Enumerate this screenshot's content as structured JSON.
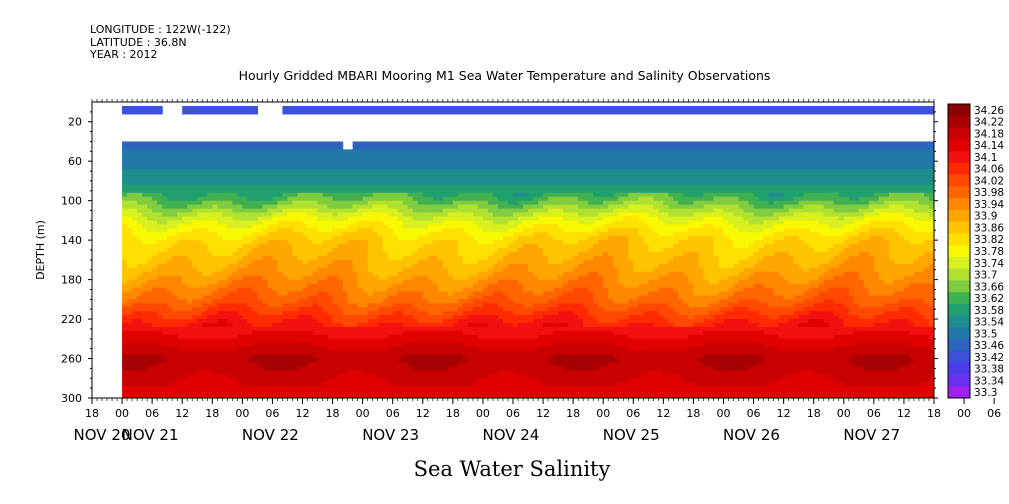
{
  "header": {
    "longitude": "LONGITUDE : 122W(-122)",
    "latitude": "LATITUDE : 36.8N",
    "year": "YEAR : 2012"
  },
  "chart_data": {
    "type": "heatmap",
    "title": "Hourly Gridded MBARI Mooring M1 Sea Water Temperature and Salinity Observations",
    "xlabel": "Sea Water Salinity",
    "ylabel": "DEPTH (m)",
    "ylim": [
      300,
      0
    ],
    "y_reversed": true,
    "y_ticks": [
      20,
      60,
      100,
      140,
      180,
      220,
      260,
      300
    ],
    "x_range_hours": [
      "NOV 20 18:00",
      "NOV 27 18:00"
    ],
    "x_hour_ticks": [
      "18",
      "00",
      "06",
      "12",
      "18",
      "00",
      "06",
      "12",
      "18",
      "00",
      "06",
      "12",
      "18",
      "00",
      "06",
      "12",
      "18",
      "00",
      "06",
      "12",
      "18",
      "00",
      "06",
      "12",
      "18",
      "00",
      "06",
      "12",
      "18",
      "00",
      "06",
      "12",
      "18"
    ],
    "x_day_labels": [
      "NOV 20",
      "NOV 21",
      "NOV 22",
      "NOV 23",
      "NOV 24",
      "NOV 25",
      "NOV 26",
      "NOV 27"
    ],
    "data_start": "NOV 21 00:00",
    "colorbar": {
      "levels": [
        34.26,
        34.22,
        34.18,
        34.14,
        34.1,
        34.06,
        34.02,
        33.98,
        33.94,
        33.9,
        33.86,
        33.82,
        33.78,
        33.74,
        33.7,
        33.66,
        33.62,
        33.58,
        33.54,
        33.5,
        33.46,
        33.42,
        33.38,
        33.34,
        33.3
      ],
      "colors": [
        "#8b0000",
        "#a80000",
        "#c80000",
        "#e00000",
        "#f21010",
        "#ff2a00",
        "#ff4800",
        "#ff6600",
        "#ff8800",
        "#ffa600",
        "#ffc400",
        "#ffe000",
        "#f8f800",
        "#d8f020",
        "#b0e030",
        "#80cc40",
        "#40b050",
        "#20a070",
        "#208c8c",
        "#2078a8",
        "#2c64c0",
        "#3c50d8",
        "#4a3ce8",
        "#6a30f0",
        "#a020f0"
      ]
    },
    "depth_profile_description_points": [
      {
        "depth": 10,
        "salinity": 33.42
      },
      {
        "depth": 40,
        "salinity": 33.48
      },
      {
        "depth": 80,
        "salinity": 33.56
      },
      {
        "depth": 100,
        "salinity": 33.66
      },
      {
        "depth": 120,
        "salinity": 33.78
      },
      {
        "depth": 140,
        "salinity": 33.86
      },
      {
        "depth": 170,
        "salinity": 33.92
      },
      {
        "depth": 200,
        "salinity": 34.0
      },
      {
        "depth": 230,
        "salinity": 34.12
      },
      {
        "depth": 260,
        "salinity": 34.22
      },
      {
        "depth": 300,
        "salinity": 34.16
      }
    ],
    "surface_gaps": [
      [
        "NOV 21 08:00",
        "NOV 21 12:00"
      ],
      [
        "NOV 22 03:00",
        "NOV 22 08:00"
      ]
    ],
    "gap_depth_range": [
      20,
      40
    ],
    "gap_notch": [
      "NOV 22 20:00",
      "NOV 22 22:00"
    ]
  }
}
